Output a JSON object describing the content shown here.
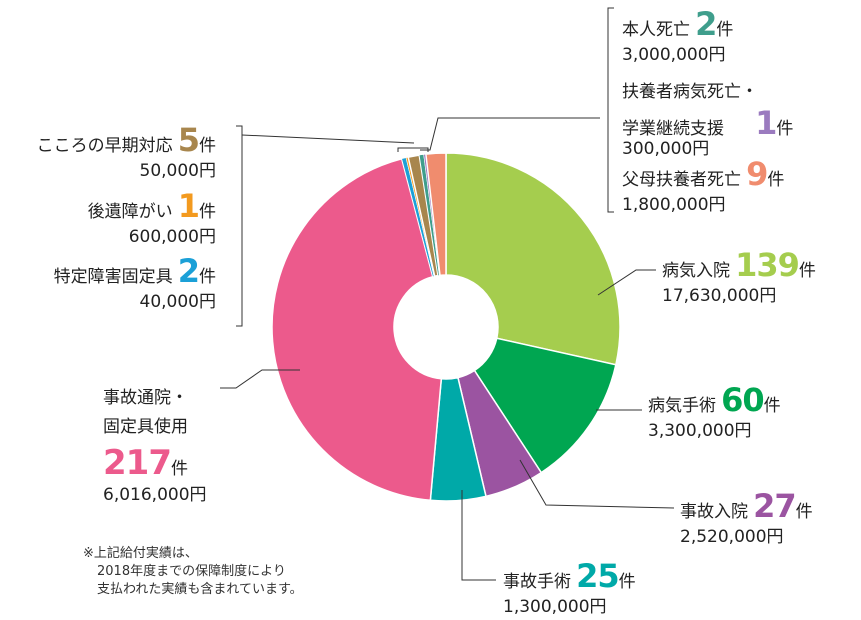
{
  "chart_data": {
    "type": "pie",
    "donut": true,
    "unit": "件",
    "slices": [
      {
        "name": "病気入院",
        "count": 139,
        "count_label": "139",
        "amount": "17,630,000円",
        "color": "#a5cd4e"
      },
      {
        "name": "病気手術",
        "count": 60,
        "count_label": "60",
        "amount": "3,300,000円",
        "color": "#00a651"
      },
      {
        "name": "事故入院",
        "count": 27,
        "count_label": "27",
        "amount": "2,520,000円",
        "color": "#9b54a1"
      },
      {
        "name": "事故手術",
        "count": 25,
        "count_label": "25",
        "amount": "1,300,000円",
        "color": "#00a9a8"
      },
      {
        "name": "事故通院・固定具使用",
        "name_lines": [
          "事故通院・",
          "固定具使用"
        ],
        "count": 217,
        "count_label": "217",
        "amount": "6,016,000円",
        "color": "#ec5a8c"
      },
      {
        "name": "特定障害固定具",
        "count": 2,
        "count_label": "2",
        "amount": "40,000円",
        "color": "#1ba0d7"
      },
      {
        "name": "後遺障がい",
        "count": 1,
        "count_label": "1",
        "amount": "600,000円",
        "color": "#f39a1f"
      },
      {
        "name": "こころの早期対応",
        "count": 5,
        "count_label": "5",
        "amount": "50,000円",
        "color": "#a8864d"
      },
      {
        "name": "本人死亡",
        "count": 2,
        "count_label": "2",
        "amount": "3,000,000円",
        "color": "#3f9e8c"
      },
      {
        "name": "扶養者病気死亡・学業継続支援",
        "name_lines": [
          "扶養者病気死亡・",
          "学業継続支援"
        ],
        "count": 1,
        "count_label": "1",
        "amount": "300,000円",
        "color": "#9b7bbf"
      },
      {
        "name": "父母扶養者死亡",
        "count": 9,
        "count_label": "9",
        "amount": "1,800,000円",
        "color": "#f08c6e"
      }
    ]
  },
  "note": {
    "lines": [
      "※上記給付実績は、",
      "2018年度までの保障制度により",
      "支払われた実績も含まれています。"
    ]
  }
}
